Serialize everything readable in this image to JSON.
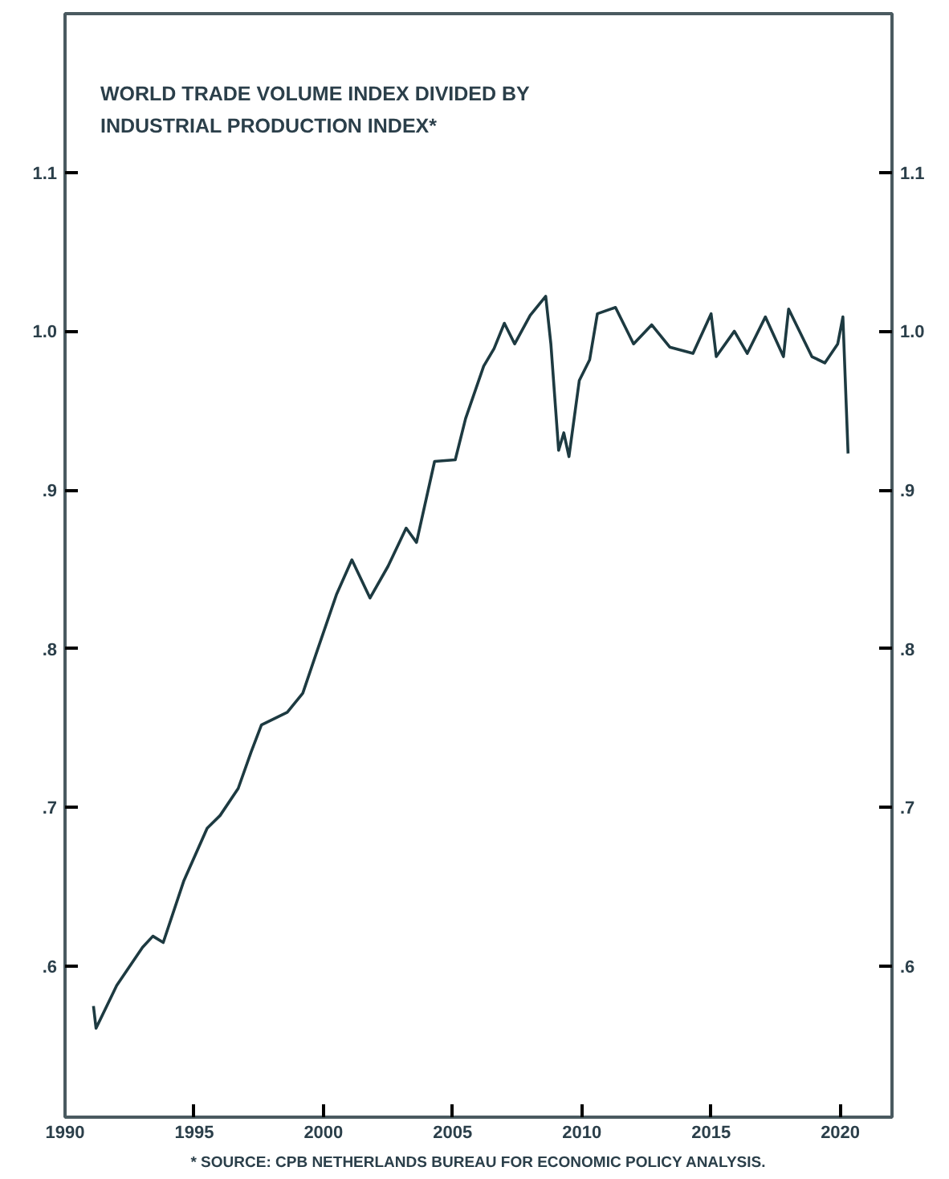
{
  "chart_data": {
    "type": "line",
    "title": "WORLD TRADE VOLUME INDEX DIVIDED BY\nINDUSTRIAL PRODUCTION INDEX*",
    "x": [
      1991.1,
      1991.2,
      1992.0,
      1992.5,
      1993.0,
      1993.4,
      1993.8,
      1994.6,
      1995.5,
      1996.0,
      1996.7,
      1997.2,
      1997.6,
      1998.6,
      1999.2,
      1999.7,
      2000.5,
      2001.1,
      2001.8,
      2002.5,
      2003.2,
      2003.6,
      2004.3,
      2005.1,
      2005.5,
      2006.2,
      2006.6,
      2007.0,
      2007.4,
      2008.0,
      2008.6,
      2008.8,
      2009.1,
      2009.3,
      2009.5,
      2009.9,
      2010.3,
      2010.6,
      2011.3,
      2012.0,
      2012.7,
      2013.4,
      2014.3,
      2015.0,
      2015.2,
      2015.9,
      2016.4,
      2017.1,
      2017.8,
      2018.0,
      2018.9,
      2019.4,
      2019.9,
      2020.1,
      2020.3
    ],
    "series": [
      {
        "color": "#1d3a41",
        "values": [
          0.575,
          0.561,
          0.588,
          0.6,
          0.612,
          0.619,
          0.615,
          0.654,
          0.687,
          0.695,
          0.712,
          0.735,
          0.752,
          0.76,
          0.772,
          0.796,
          0.834,
          0.856,
          0.832,
          0.852,
          0.876,
          0.867,
          0.918,
          0.919,
          0.945,
          0.978,
          0.989,
          1.005,
          0.992,
          1.01,
          1.022,
          0.992,
          0.925,
          0.936,
          0.921,
          0.969,
          0.982,
          1.011,
          1.015,
          0.992,
          1.004,
          0.99,
          0.986,
          1.011,
          0.984,
          1.0,
          0.986,
          1.009,
          0.984,
          1.014,
          0.984,
          0.98,
          0.992,
          1.009,
          0.923
        ]
      }
    ],
    "xlim": [
      1990,
      2022
    ],
    "xticks": [
      1990,
      1995,
      2000,
      2005,
      2010,
      2015,
      2020
    ],
    "ylim": [
      0.505,
      1.2
    ],
    "yticks": [
      {
        "value": 0.6,
        "label": ".6"
      },
      {
        "value": 0.7,
        "label": ".7"
      },
      {
        "value": 0.8,
        "label": ".8"
      },
      {
        "value": 0.9,
        "label": ".9"
      },
      {
        "value": 1.0,
        "label": "1.0"
      },
      {
        "value": 1.1,
        "label": "1.1"
      }
    ],
    "y2lim": [
      0.505,
      1.2
    ],
    "y2ticks": [
      {
        "value": 0.6,
        "label": ".6"
      },
      {
        "value": 0.7,
        "label": ".7"
      },
      {
        "value": 0.8,
        "label": ".8"
      },
      {
        "value": 0.9,
        "label": ".9"
      },
      {
        "value": 1.0,
        "label": "1.0"
      },
      {
        "value": 1.1,
        "label": "1.1"
      }
    ],
    "annotations": [
      "* SOURCE: CPB NETHERLANDS BUREAU FOR ECONOMIC POLICY ANALYSIS."
    ],
    "grid": false,
    "marker": "none",
    "line_style": "solid"
  }
}
